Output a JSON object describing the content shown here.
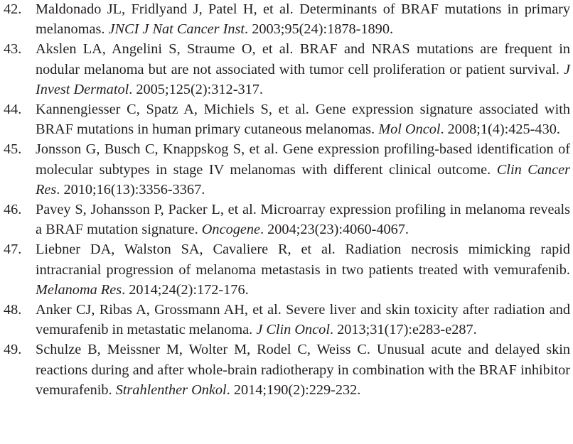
{
  "references": [
    {
      "number": "42.",
      "text": "Maldonado JL, Fridlyand J, Patel H, et al. Determinants of BRAF mutations in primary melanomas. ",
      "journal": "JNCI J Nat Cancer Inst",
      "citation": ". 2003;95(24):1878-1890."
    },
    {
      "number": "43.",
      "text": "Akslen LA, Angelini S, Straume O, et al. BRAF and NRAS mutations are frequent in nodular melanoma but are not associated with tumor cell proliferation or patient survival. ",
      "journal": "J Invest Dermatol",
      "citation": ". 2005;125(2):312-317."
    },
    {
      "number": "44.",
      "text": "Kannengiesser C, Spatz A, Michiels S, et al. Gene expression signature associated with BRAF mutations in human primary cutaneous melanomas. ",
      "journal": "Mol Oncol",
      "citation": ". 2008;1(4):425-430."
    },
    {
      "number": "45.",
      "text": "Jonsson G, Busch C, Knappskog S, et al. Gene expression profiling-based identification of molecular subtypes in stage IV melanomas with different clinical outcome. ",
      "journal": "Clin Cancer Res",
      "citation": ". 2010;16(13):3356-3367."
    },
    {
      "number": "46.",
      "text": "Pavey S, Johansson P, Packer L, et al. Microarray expression profiling in melanoma reveals a BRAF mutation signature. ",
      "journal": "Oncogene",
      "citation": ". 2004;23(23):4060-4067."
    },
    {
      "number": "47.",
      "text": "Liebner DA, Walston SA, Cavaliere R, et al. Radiation necrosis mimicking rapid intracranial progression of melanoma metastasis in two patients treated with vemurafenib. ",
      "journal": "Melanoma Res",
      "citation": ". 2014;24(2):172-176."
    },
    {
      "number": "48.",
      "text": "Anker CJ, Ribas A, Grossmann AH, et al. Severe liver and skin toxicity after radiation and vemurafenib in metastatic melanoma. ",
      "journal": "J Clin Oncol",
      "citation": ". 2013;31(17):e283-e287."
    },
    {
      "number": "49.",
      "text": "Schulze B, Meissner M, Wolter M, Rodel C, Weiss C. Unusual acute and delayed skin reactions during and after whole-brain radiotherapy in combination with the BRAF inhibitor vemurafenib. ",
      "journal": "Strahlenther Onkol",
      "citation": ". 2014;190(2):229-232."
    }
  ]
}
